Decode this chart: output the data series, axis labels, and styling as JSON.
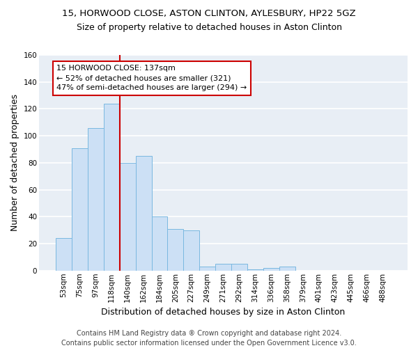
{
  "title1": "15, HORWOOD CLOSE, ASTON CLINTON, AYLESBURY, HP22 5GZ",
  "title2": "Size of property relative to detached houses in Aston Clinton",
  "xlabel": "Distribution of detached houses by size in Aston Clinton",
  "ylabel": "Number of detached properties",
  "bar_labels": [
    "53sqm",
    "75sqm",
    "97sqm",
    "118sqm",
    "140sqm",
    "162sqm",
    "184sqm",
    "205sqm",
    "227sqm",
    "249sqm",
    "271sqm",
    "292sqm",
    "314sqm",
    "336sqm",
    "358sqm",
    "379sqm",
    "401sqm",
    "423sqm",
    "445sqm",
    "466sqm",
    "488sqm"
  ],
  "bar_values": [
    24,
    91,
    106,
    124,
    80,
    85,
    40,
    31,
    30,
    3,
    5,
    5,
    1,
    2,
    3,
    0,
    0,
    0,
    0,
    0,
    0
  ],
  "bar_color": "#cce0f5",
  "bar_edge_color": "#7ab8e0",
  "vline_color": "#cc0000",
  "vline_index": 3.5,
  "annotation_text": "15 HORWOOD CLOSE: 137sqm\n← 52% of detached houses are smaller (321)\n47% of semi-detached houses are larger (294) →",
  "annotation_box_color": "white",
  "annotation_box_edge_color": "#cc0000",
  "ylim": [
    0,
    160
  ],
  "yticks": [
    0,
    20,
    40,
    60,
    80,
    100,
    120,
    140,
    160
  ],
  "background_color": "#e8eef5",
  "grid_color": "white",
  "footer": "Contains HM Land Registry data ® Crown copyright and database right 2024.\nContains public sector information licensed under the Open Government Licence v3.0.",
  "title1_fontsize": 9.5,
  "title2_fontsize": 9,
  "xlabel_fontsize": 9,
  "ylabel_fontsize": 9,
  "annotation_fontsize": 8,
  "footer_fontsize": 7,
  "tick_fontsize": 7.5
}
